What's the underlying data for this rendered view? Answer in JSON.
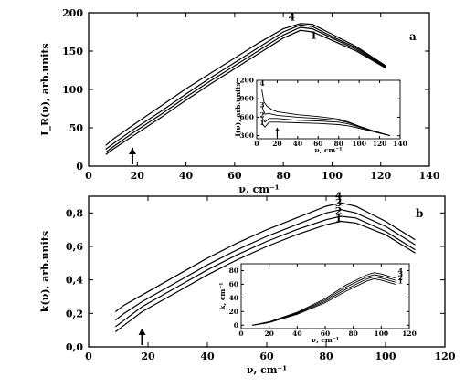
{
  "chart_data": [
    {
      "type": "line",
      "panel": "a",
      "xlabel": "ν, cm⁻¹",
      "ylabel": "I_R(ν), arb.units",
      "xlim": [
        0,
        140
      ],
      "ylim": [
        0,
        200
      ],
      "x_ticks": [
        "0",
        "20",
        "40",
        "60",
        "80",
        "100",
        "120",
        "140"
      ],
      "y_ticks": [
        "0",
        "50",
        "100",
        "150",
        "200"
      ],
      "arrow_x": 18,
      "series": [
        {
          "name": "1",
          "x": [
            7,
            10,
            18,
            30,
            40,
            50,
            60,
            70,
            80,
            87,
            92,
            100,
            110,
            122
          ],
          "y": [
            15,
            22,
            39,
            64,
            86,
            107,
            127,
            147,
            167,
            177,
            175,
            164,
            150,
            128
          ]
        },
        {
          "name": "2",
          "x": [
            7,
            10,
            18,
            30,
            40,
            50,
            60,
            70,
            80,
            87,
            92,
            100,
            110,
            122
          ],
          "y": [
            18,
            25,
            43,
            68,
            90,
            111,
            131,
            151,
            171,
            181,
            179,
            167,
            152,
            129
          ]
        },
        {
          "name": "3",
          "x": [
            7,
            10,
            18,
            30,
            40,
            50,
            60,
            70,
            80,
            87,
            92,
            100,
            110,
            122
          ],
          "y": [
            22,
            29,
            47,
            72,
            94,
            115,
            135,
            155,
            175,
            184,
            182,
            169,
            154,
            130
          ]
        },
        {
          "name": "4",
          "x": [
            7,
            10,
            18,
            30,
            40,
            50,
            60,
            70,
            80,
            87,
            92,
            100,
            110,
            122
          ],
          "y": [
            27,
            35,
            53,
            79,
            101,
            121,
            141,
            161,
            179,
            186,
            185,
            172,
            156,
            131
          ]
        }
      ],
      "inset": {
        "type": "line",
        "xlabel": "ν, cm⁻¹",
        "ylabel": "I(ν), arb.units",
        "xlim": [
          0,
          140
        ],
        "ylim": [
          250,
          1200
        ],
        "x_ticks": [
          "0",
          "20",
          "40",
          "60",
          "80",
          "100",
          "120",
          "140"
        ],
        "y_ticks": [
          "300",
          "600",
          "900",
          "1200"
        ],
        "arrow_x": 20,
        "series": [
          {
            "name": "1",
            "x": [
              5,
              8,
              12,
              20,
              40,
              60,
              80,
              90,
              100,
              110,
              120,
              130
            ],
            "y": [
              500,
              440,
              520,
              520,
              510,
              500,
              480,
              460,
              420,
              380,
              340,
              300
            ]
          },
          {
            "name": "2",
            "x": [
              5,
              8,
              12,
              20,
              40,
              60,
              80,
              90,
              100,
              110,
              120,
              130
            ],
            "y": [
              600,
              520,
              580,
              580,
              550,
              540,
              520,
              490,
              440,
              390,
              345,
              300
            ]
          },
          {
            "name": "3",
            "x": [
              5,
              8,
              12,
              20,
              40,
              60,
              80,
              90,
              100,
              110,
              120,
              130
            ],
            "y": [
              780,
              650,
              660,
              630,
              600,
              580,
              550,
              510,
              450,
              395,
              348,
              300
            ]
          },
          {
            "name": "4",
            "x": [
              5,
              7,
              10,
              15,
              20,
              40,
              60,
              80,
              90,
              100,
              110,
              120,
              130
            ],
            "y": [
              1050,
              850,
              780,
              720,
              690,
              640,
              610,
              570,
              520,
              455,
              400,
              350,
              300
            ]
          }
        ]
      }
    },
    {
      "type": "line",
      "panel": "b",
      "xlabel": "ν, cm⁻¹",
      "ylabel": "k(ν), arb.units",
      "xlim": [
        0,
        120
      ],
      "ylim": [
        0,
        0.9
      ],
      "x_ticks": [
        "0",
        "20",
        "40",
        "60",
        "80",
        "100",
        "120"
      ],
      "y_ticks": [
        "0,0",
        "0,2",
        "0,4",
        "0,6",
        "0,8"
      ],
      "arrow_x": 18,
      "series": [
        {
          "name": "1",
          "x": [
            9,
            12,
            18,
            30,
            40,
            50,
            60,
            70,
            80,
            85,
            90,
            100,
            110
          ],
          "y": [
            0.09,
            0.13,
            0.21,
            0.33,
            0.43,
            0.52,
            0.6,
            0.67,
            0.73,
            0.75,
            0.74,
            0.67,
            0.56
          ]
        },
        {
          "name": "2",
          "x": [
            9,
            12,
            18,
            30,
            40,
            50,
            60,
            70,
            80,
            85,
            90,
            100,
            110
          ],
          "y": [
            0.12,
            0.16,
            0.24,
            0.36,
            0.46,
            0.55,
            0.63,
            0.7,
            0.76,
            0.78,
            0.77,
            0.69,
            0.58
          ]
        },
        {
          "name": "3",
          "x": [
            9,
            12,
            18,
            30,
            40,
            50,
            60,
            70,
            80,
            85,
            90,
            100,
            110
          ],
          "y": [
            0.16,
            0.2,
            0.27,
            0.39,
            0.49,
            0.58,
            0.66,
            0.73,
            0.8,
            0.82,
            0.8,
            0.72,
            0.61
          ]
        },
        {
          "name": "4",
          "x": [
            9,
            12,
            18,
            30,
            40,
            50,
            60,
            70,
            80,
            85,
            90,
            100,
            110
          ],
          "y": [
            0.21,
            0.25,
            0.31,
            0.43,
            0.53,
            0.62,
            0.7,
            0.77,
            0.84,
            0.86,
            0.84,
            0.75,
            0.64
          ]
        }
      ],
      "inset": {
        "type": "line",
        "xlabel": "ν, cm⁻¹",
        "ylabel": "k, cm⁻¹",
        "xlim": [
          0,
          120
        ],
        "ylim": [
          -5,
          90
        ],
        "x_ticks": [
          "0",
          "20",
          "40",
          "60",
          "80",
          "100",
          "120"
        ],
        "y_ticks": [
          "0",
          "20",
          "40",
          "60",
          "80"
        ],
        "series": [
          {
            "name": "1",
            "x": [
              8,
              20,
              40,
              60,
              75,
              90,
              95,
              100,
              110
            ],
            "y": [
              0,
              4,
              16,
              33,
              50,
              65,
              68,
              66,
              60
            ]
          },
          {
            "name": "2",
            "x": [
              8,
              20,
              40,
              60,
              75,
              90,
              95,
              100,
              110
            ],
            "y": [
              0,
              4,
              17,
              35,
              53,
              68,
              71,
              69,
              63
            ]
          },
          {
            "name": "3",
            "x": [
              8,
              20,
              40,
              60,
              75,
              90,
              95,
              100,
              110
            ],
            "y": [
              0,
              4,
              18,
              37,
              56,
              71,
              74,
              72,
              66
            ]
          },
          {
            "name": "4",
            "x": [
              8,
              20,
              40,
              60,
              75,
              90,
              95,
              100,
              110
            ],
            "y": [
              0,
              5,
              19,
              39,
              59,
              74,
              77,
              75,
              69
            ]
          }
        ]
      }
    }
  ]
}
